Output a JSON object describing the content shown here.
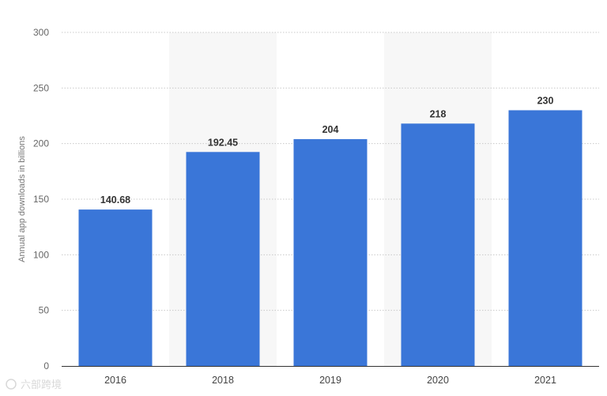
{
  "chart_data": {
    "type": "bar",
    "categories": [
      "2016",
      "2018",
      "2019",
      "2020",
      "2021"
    ],
    "values": [
      140.68,
      192.45,
      204,
      218,
      230
    ],
    "data_labels": [
      "140.68",
      "192.45",
      "204",
      "218",
      "230"
    ],
    "title": "",
    "xlabel": "",
    "ylabel": "Annual app downloads in billions",
    "ylim": [
      0,
      300
    ],
    "yticks": [
      0,
      50,
      100,
      150,
      200,
      250,
      300
    ],
    "ytick_labels": [
      "0",
      "50",
      "100",
      "150",
      "200",
      "250",
      "300"
    ],
    "grid": true,
    "legend": "none",
    "colors": {
      "bar": "#3a76d8",
      "band": "#f7f7f7",
      "grid": "#c9c9c9",
      "axis": "#333333"
    }
  },
  "watermark": {
    "text": "六部跨境"
  }
}
